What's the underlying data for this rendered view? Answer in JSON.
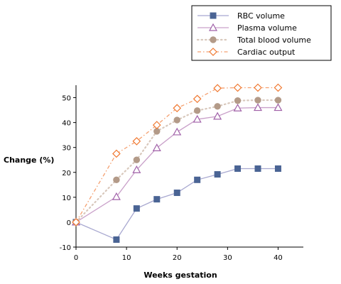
{
  "chart_data": {
    "type": "line",
    "xlabel": "Weeks  gestation",
    "ylabel": "Change (%)",
    "xlim": [
      0,
      45
    ],
    "ylim": [
      -10,
      55
    ],
    "xticks": [
      0,
      10,
      20,
      30,
      40
    ],
    "yticks": [
      -10,
      0,
      10,
      20,
      30,
      40,
      50
    ],
    "grid": false,
    "legend_position": "top-right",
    "series": [
      {
        "name": "RBC volume",
        "color": "#4a6494",
        "line_color": "#a8a8d0",
        "marker": "square",
        "dash": "solid",
        "x": [
          0,
          8,
          12,
          16,
          20,
          24,
          28,
          32,
          36,
          40
        ],
        "y": [
          0,
          -7,
          5.5,
          9.2,
          11.8,
          17,
          19.2,
          21.5,
          21.5,
          21.5
        ]
      },
      {
        "name": "Plasma volume",
        "color": "#a060a8",
        "line_color": "#c9a0c9",
        "marker": "triangle",
        "dash": "solid",
        "x": [
          0,
          8,
          12,
          16,
          20,
          24,
          28,
          32,
          36,
          40
        ],
        "y": [
          0,
          10.2,
          21,
          29.8,
          36.2,
          41.3,
          42.5,
          45.8,
          46,
          46
        ]
      },
      {
        "name": "Total blood volume",
        "color": "#b39a88",
        "line_color": "#d8c8bc",
        "marker": "circle",
        "dash": "dotted",
        "x": [
          0,
          8,
          12,
          16,
          20,
          24,
          28,
          32,
          36,
          40
        ],
        "y": [
          0,
          17,
          25,
          36.5,
          41,
          44.8,
          46.5,
          48.8,
          49,
          49
        ]
      },
      {
        "name": "Cardiac output",
        "color": "#f07830",
        "line_color": "#f5a070",
        "marker": "diamond",
        "dash": "dashdot",
        "x": [
          0,
          8,
          12,
          16,
          20,
          24,
          28,
          32,
          36,
          40
        ],
        "y": [
          0,
          27.5,
          32.5,
          39,
          45.8,
          49.5,
          53.8,
          54,
          54,
          54
        ]
      }
    ]
  }
}
